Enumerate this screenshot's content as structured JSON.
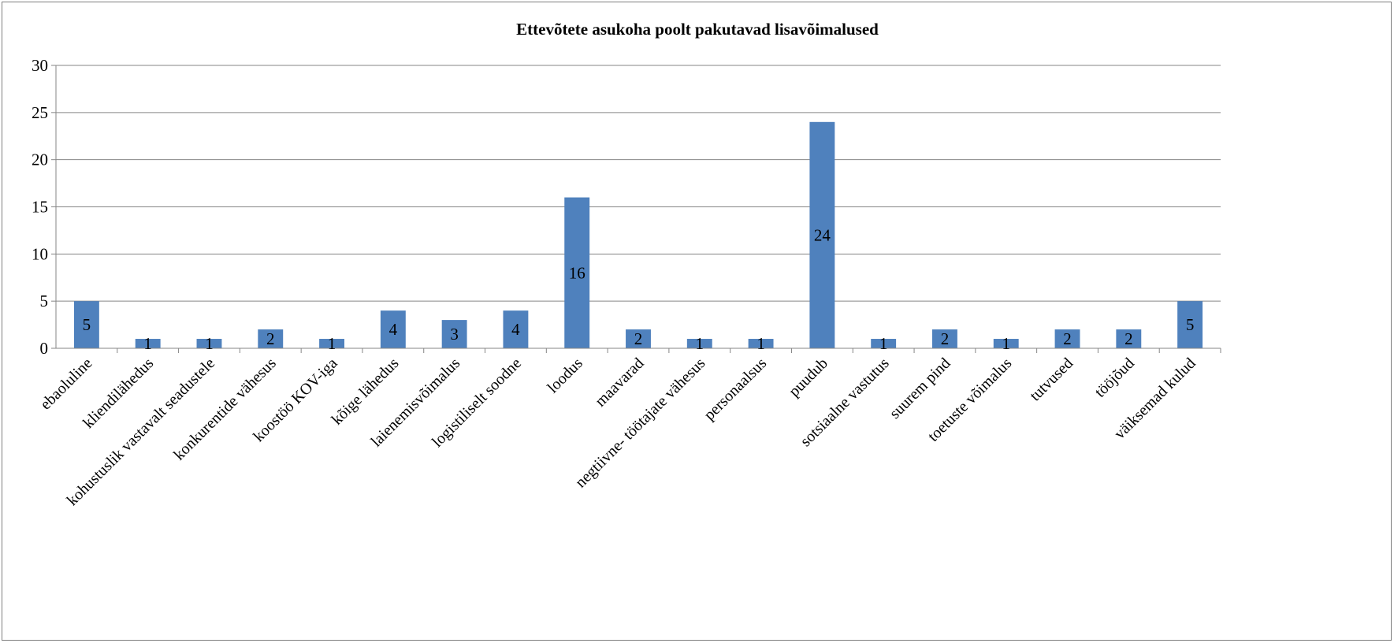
{
  "chart_data": {
    "type": "bar",
    "title": "Ettevõtete asukoha poolt pakutavad lisavõimalused",
    "categories": [
      "ebaoluline",
      "kliendilähedus",
      "kohustuslik vastavalt seadustele",
      "konkurentide vähesus",
      "koostöö KOV-iga",
      "kõige lähedus",
      "laienemisvõimalus",
      "logistiliselt soodne",
      "loodus",
      "maavarad",
      "negtiivne- töötajate vähesus",
      "personaalsus",
      "puudub",
      "sotsiaalne vastutus",
      "suurem pind",
      "toetuste võimalus",
      "tutvused",
      "tööjõud",
      "väiksemad kulud"
    ],
    "values": [
      5,
      1,
      1,
      2,
      1,
      4,
      3,
      4,
      16,
      2,
      1,
      1,
      24,
      1,
      2,
      1,
      2,
      2,
      5
    ],
    "ylim": [
      0,
      30
    ],
    "yticks": [
      0,
      5,
      10,
      15,
      20,
      25,
      30
    ],
    "grid": true,
    "legend": "none",
    "bar_color": "#4f81bd",
    "grid_color": "#868686"
  }
}
